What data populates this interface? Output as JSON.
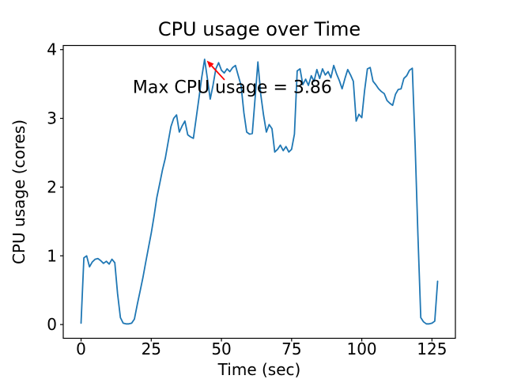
{
  "figure": {
    "background": "#ffffff"
  },
  "chart_data": {
    "type": "line",
    "title": "CPU usage over Time",
    "xlabel": "Time (sec)",
    "ylabel": "CPU usage (cores)",
    "xlim": [
      -6.35,
      133.35
    ],
    "ylim": [
      -0.2,
      4.06
    ],
    "xticks": [
      0,
      25,
      50,
      75,
      100,
      125
    ],
    "yticks": [
      0,
      1,
      2,
      3,
      4
    ],
    "grid": false,
    "legend": null,
    "line_color": "#1f77b4",
    "x": [
      0,
      1,
      2,
      3,
      4,
      5,
      6,
      7,
      8,
      9,
      10,
      11,
      12,
      13,
      14,
      15,
      16,
      17,
      18,
      19,
      20,
      21,
      22,
      23,
      24,
      25,
      26,
      27,
      28,
      29,
      30,
      31,
      32,
      33,
      34,
      35,
      36,
      37,
      38,
      39,
      40,
      41,
      42,
      43,
      44,
      45,
      46,
      47,
      48,
      49,
      50,
      51,
      52,
      53,
      54,
      55,
      56,
      57,
      58,
      59,
      60,
      61,
      62,
      63,
      64,
      65,
      66,
      67,
      68,
      69,
      70,
      71,
      72,
      73,
      74,
      75,
      76,
      77,
      78,
      79,
      80,
      81,
      82,
      83,
      84,
      85,
      86,
      87,
      88,
      89,
      90,
      91,
      92,
      93,
      94,
      95,
      96,
      97,
      98,
      99,
      100,
      101,
      102,
      103,
      104,
      105,
      106,
      107,
      108,
      109,
      110,
      111,
      112,
      113,
      114,
      115,
      116,
      117,
      118,
      119,
      120,
      121,
      122,
      123,
      124,
      125,
      126,
      127
    ],
    "values": [
      0.02,
      0.97,
      1.0,
      0.84,
      0.91,
      0.95,
      0.96,
      0.93,
      0.89,
      0.92,
      0.88,
      0.95,
      0.9,
      0.45,
      0.1,
      0.02,
      0.01,
      0.01,
      0.02,
      0.08,
      0.29,
      0.48,
      0.68,
      0.9,
      1.12,
      1.33,
      1.58,
      1.85,
      2.05,
      2.25,
      2.42,
      2.65,
      2.88,
      3.0,
      3.05,
      2.8,
      2.89,
      2.96,
      2.76,
      2.73,
      2.71,
      3.0,
      3.3,
      3.6,
      3.86,
      3.58,
      3.28,
      3.48,
      3.72,
      3.81,
      3.7,
      3.66,
      3.72,
      3.68,
      3.74,
      3.77,
      3.62,
      3.48,
      3.08,
      2.8,
      2.77,
      2.78,
      3.3,
      3.82,
      3.35,
      3.05,
      2.8,
      2.91,
      2.85,
      2.51,
      2.55,
      2.61,
      2.53,
      2.59,
      2.51,
      2.55,
      2.77,
      3.69,
      3.72,
      3.49,
      3.57,
      3.48,
      3.62,
      3.54,
      3.71,
      3.58,
      3.72,
      3.63,
      3.68,
      3.59,
      3.77,
      3.65,
      3.55,
      3.43,
      3.58,
      3.71,
      3.63,
      3.54,
      2.96,
      3.06,
      3.01,
      3.4,
      3.72,
      3.74,
      3.54,
      3.49,
      3.43,
      3.39,
      3.36,
      3.26,
      3.22,
      3.19,
      3.35,
      3.42,
      3.43,
      3.58,
      3.62,
      3.7,
      3.73,
      2.6,
      1.3,
      0.1,
      0.04,
      0.01,
      0.01,
      0.02,
      0.05,
      0.63
    ],
    "max_value": 3.86,
    "annotation": {
      "text": "Max CPU usage = 3.86",
      "color": "#ff0000",
      "arrow_tip": [
        44.8,
        3.84
      ],
      "arrow_tail": [
        51.1,
        3.56
      ],
      "text_pos": [
        18.4,
        3.37
      ]
    }
  }
}
